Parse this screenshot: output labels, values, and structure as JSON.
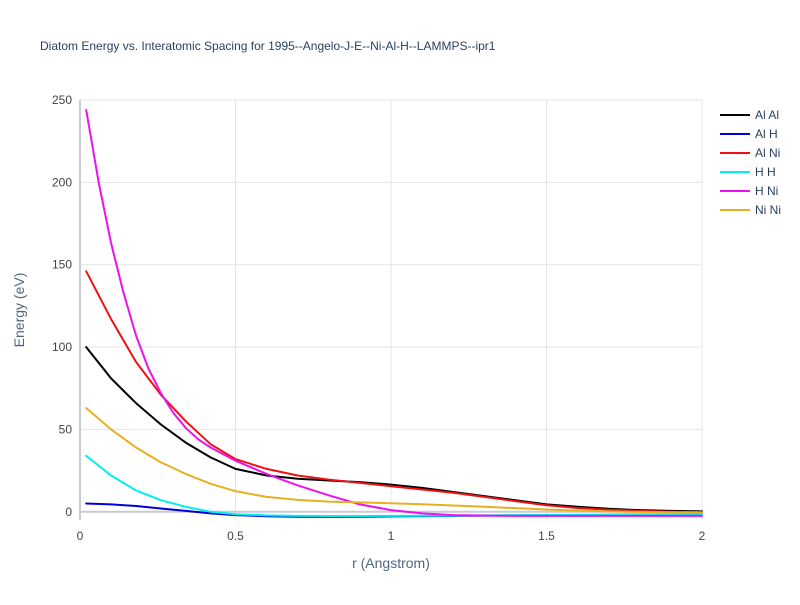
{
  "chart_data": {
    "type": "line",
    "title": "Diatom Energy vs. Interatomic Spacing for 1995--Angelo-J-E--Ni-Al-H--LAMMPS--ipr1",
    "xlabel": "r (Angstrom)",
    "ylabel": "Energy (eV)",
    "xlim": [
      0,
      2
    ],
    "ylim": [
      -5,
      250
    ],
    "x_ticks": [
      {
        "value": 0,
        "label": "0"
      },
      {
        "value": 0.5,
        "label": "0.5"
      },
      {
        "value": 1,
        "label": "1"
      },
      {
        "value": 1.5,
        "label": "1.5"
      },
      {
        "value": 2,
        "label": "2"
      }
    ],
    "y_ticks": [
      {
        "value": 0,
        "label": "0"
      },
      {
        "value": 50,
        "label": "50"
      },
      {
        "value": 100,
        "label": "100"
      },
      {
        "value": 150,
        "label": "150"
      },
      {
        "value": 200,
        "label": "200"
      },
      {
        "value": 250,
        "label": "250"
      }
    ],
    "grid": true,
    "legend_position": "top-right",
    "series": [
      {
        "name": "Al Al",
        "color": "#000000",
        "points": [
          [
            0.02,
            100
          ],
          [
            0.1,
            81
          ],
          [
            0.18,
            66
          ],
          [
            0.26,
            53
          ],
          [
            0.34,
            42
          ],
          [
            0.42,
            33
          ],
          [
            0.5,
            26
          ],
          [
            0.6,
            22
          ],
          [
            0.7,
            20
          ],
          [
            0.8,
            19
          ],
          [
            0.9,
            18
          ],
          [
            1.0,
            16.5
          ],
          [
            1.1,
            14.5
          ],
          [
            1.2,
            12
          ],
          [
            1.3,
            9.5
          ],
          [
            1.4,
            7
          ],
          [
            1.5,
            4.5
          ],
          [
            1.6,
            3
          ],
          [
            1.7,
            1.8
          ],
          [
            1.8,
            1
          ],
          [
            1.9,
            0.5
          ],
          [
            2.0,
            0.2
          ]
        ]
      },
      {
        "name": "Al H",
        "color": "#0000dd",
        "points": [
          [
            0.02,
            5
          ],
          [
            0.1,
            4.5
          ],
          [
            0.18,
            3.5
          ],
          [
            0.26,
            2
          ],
          [
            0.34,
            0.5
          ],
          [
            0.42,
            -1
          ],
          [
            0.5,
            -2
          ],
          [
            0.6,
            -2.7
          ],
          [
            0.7,
            -3
          ],
          [
            0.8,
            -3.1
          ],
          [
            0.9,
            -3
          ],
          [
            1.0,
            -2.8
          ],
          [
            1.2,
            -2.5
          ],
          [
            1.4,
            -2.2
          ],
          [
            1.6,
            -2
          ],
          [
            1.8,
            -1.8
          ],
          [
            2.0,
            -1.5
          ]
        ]
      },
      {
        "name": "Al Ni",
        "color": "#ee1111",
        "points": [
          [
            0.02,
            146
          ],
          [
            0.1,
            117
          ],
          [
            0.18,
            91
          ],
          [
            0.26,
            71
          ],
          [
            0.34,
            55
          ],
          [
            0.42,
            41
          ],
          [
            0.5,
            32
          ],
          [
            0.6,
            26
          ],
          [
            0.7,
            22
          ],
          [
            0.8,
            19.5
          ],
          [
            0.9,
            17.5
          ],
          [
            1.0,
            15.5
          ],
          [
            1.1,
            13.5
          ],
          [
            1.2,
            11.5
          ],
          [
            1.3,
            9
          ],
          [
            1.4,
            6.5
          ],
          [
            1.5,
            4
          ],
          [
            1.6,
            2.3
          ],
          [
            1.7,
            1.2
          ],
          [
            1.8,
            0.5
          ],
          [
            1.9,
            0
          ],
          [
            2.0,
            -0.3
          ]
        ]
      },
      {
        "name": "H H",
        "color": "#00eeee",
        "points": [
          [
            0.02,
            34
          ],
          [
            0.1,
            22
          ],
          [
            0.18,
            13
          ],
          [
            0.26,
            7
          ],
          [
            0.34,
            3
          ],
          [
            0.42,
            0
          ],
          [
            0.5,
            -1.5
          ],
          [
            0.6,
            -2.2
          ],
          [
            0.7,
            -2.5
          ],
          [
            0.8,
            -2.6
          ],
          [
            0.9,
            -2.6
          ],
          [
            1.0,
            -2.5
          ],
          [
            1.2,
            -2.3
          ],
          [
            1.4,
            -2
          ],
          [
            1.6,
            -1.8
          ],
          [
            1.8,
            -1.6
          ],
          [
            2.0,
            -1.5
          ]
        ]
      },
      {
        "name": "H Ni",
        "color": "#ee11ee",
        "points": [
          [
            0.02,
            244
          ],
          [
            0.06,
            200
          ],
          [
            0.1,
            163
          ],
          [
            0.14,
            133
          ],
          [
            0.18,
            107
          ],
          [
            0.22,
            87
          ],
          [
            0.26,
            72
          ],
          [
            0.3,
            60
          ],
          [
            0.34,
            51
          ],
          [
            0.38,
            44
          ],
          [
            0.42,
            39
          ],
          [
            0.5,
            31
          ],
          [
            0.6,
            23
          ],
          [
            0.7,
            16
          ],
          [
            0.8,
            10
          ],
          [
            0.9,
            4.5
          ],
          [
            1.0,
            1
          ],
          [
            1.1,
            -1
          ],
          [
            1.2,
            -2
          ],
          [
            1.4,
            -2.5
          ],
          [
            1.6,
            -2.5
          ],
          [
            1.8,
            -2.5
          ],
          [
            2.0,
            -2.5
          ]
        ]
      },
      {
        "name": "Ni Ni",
        "color": "#e6b020",
        "points": [
          [
            0.02,
            63
          ],
          [
            0.1,
            50
          ],
          [
            0.18,
            39
          ],
          [
            0.26,
            30
          ],
          [
            0.34,
            23
          ],
          [
            0.42,
            17
          ],
          [
            0.5,
            12.5
          ],
          [
            0.6,
            9
          ],
          [
            0.7,
            7.2
          ],
          [
            0.8,
            6.2
          ],
          [
            0.9,
            5.7
          ],
          [
            1.0,
            5.2
          ],
          [
            1.1,
            4.6
          ],
          [
            1.2,
            3.8
          ],
          [
            1.3,
            3
          ],
          [
            1.4,
            2.2
          ],
          [
            1.5,
            1.4
          ],
          [
            1.6,
            0.7
          ],
          [
            1.7,
            0.2
          ],
          [
            1.8,
            -0.1
          ],
          [
            1.9,
            -0.3
          ],
          [
            2.0,
            -0.4
          ]
        ]
      }
    ]
  }
}
